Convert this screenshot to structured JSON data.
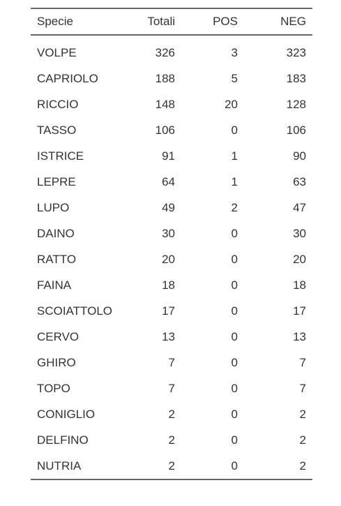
{
  "table": {
    "columns": [
      "Specie",
      "Totali",
      "POS",
      "NEG"
    ],
    "rows": [
      [
        "VOLPE",
        "326",
        "3",
        "323"
      ],
      [
        "CAPRIOLO",
        "188",
        "5",
        "183"
      ],
      [
        "RICCIO",
        "148",
        "20",
        "128"
      ],
      [
        "TASSO",
        "106",
        "0",
        "106"
      ],
      [
        "ISTRICE",
        "91",
        "1",
        "90"
      ],
      [
        "LEPRE",
        "64",
        "1",
        "63"
      ],
      [
        "LUPO",
        "49",
        "2",
        "47"
      ],
      [
        "DAINO",
        "30",
        "0",
        "30"
      ],
      [
        "RATTO",
        "20",
        "0",
        "20"
      ],
      [
        "FAINA",
        "18",
        "0",
        "18"
      ],
      [
        "SCOIATTOLO",
        "17",
        "0",
        "17"
      ],
      [
        "CERVO",
        "13",
        "0",
        "13"
      ],
      [
        "GHIRO",
        "7",
        "0",
        "7"
      ],
      [
        "TOPO",
        "7",
        "0",
        "7"
      ],
      [
        "CONIGLIO",
        "2",
        "0",
        "2"
      ],
      [
        "DELFINO",
        "2",
        "0",
        "2"
      ],
      [
        "NUTRIA",
        "2",
        "0",
        "2"
      ]
    ]
  }
}
